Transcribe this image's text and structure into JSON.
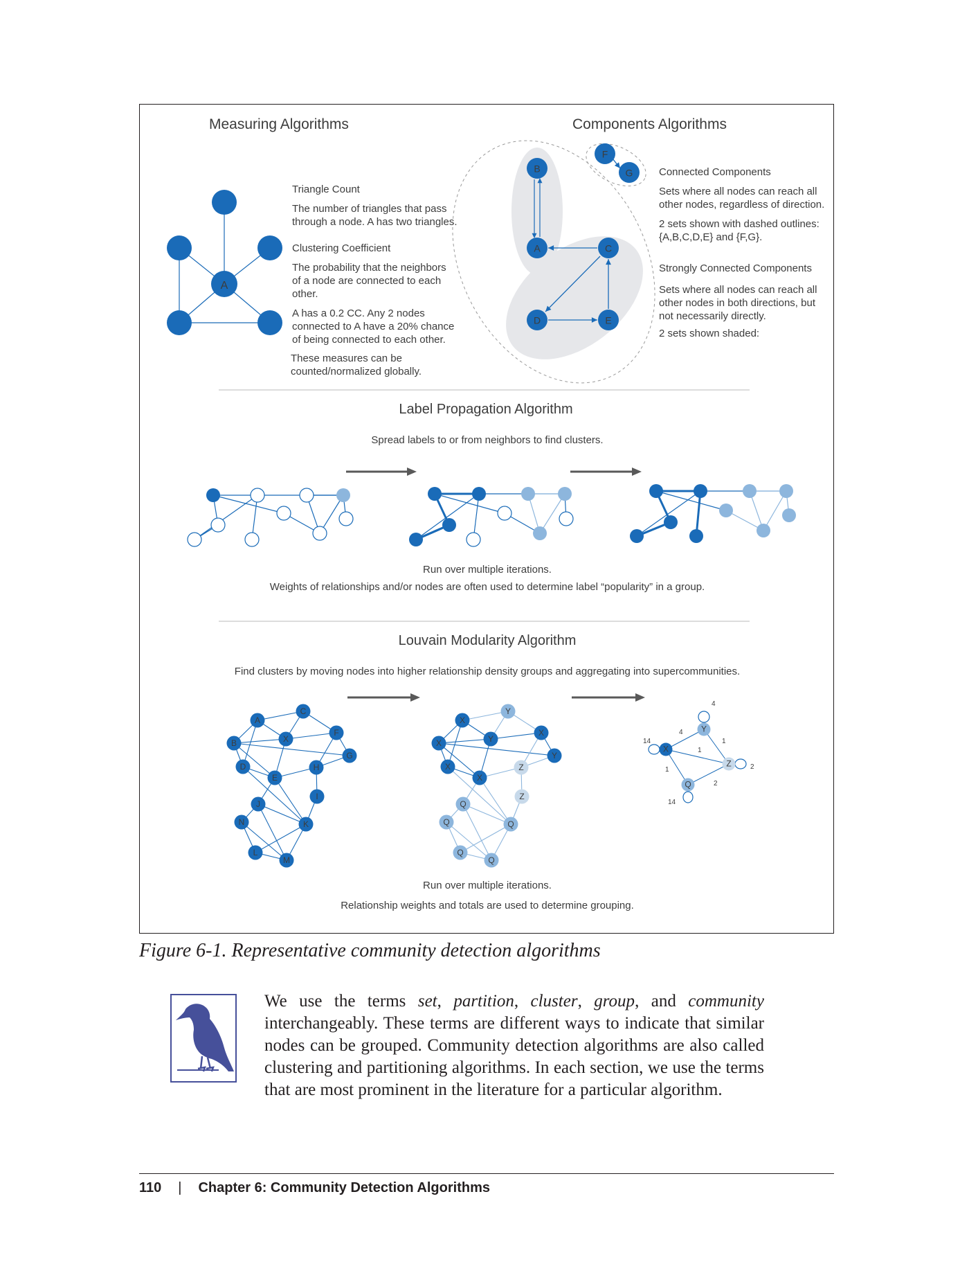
{
  "figure": {
    "measuring": {
      "title": "Measuring Algorithms",
      "node_label": "A",
      "triangle_title": "Triangle Count",
      "triangle_lines": [
        "The number of triangles that pass",
        "through a node. A has two triangles."
      ],
      "clustering_title": "Clustering Coefficient",
      "clustering_lines": [
        "The probability that the neighbors",
        "of a node are connected to each",
        "other."
      ],
      "cc_lines": [
        " A has a 0.2 CC. Any 2 nodes",
        "connected to A have a 20% chance",
        "of being connected to each other."
      ],
      "global_lines": [
        "These measures can be",
        "counted/normalized globally."
      ]
    },
    "components": {
      "title": "Components Algorithms",
      "nodes": [
        "F",
        "G",
        "B",
        "A",
        "C",
        "D",
        "E"
      ],
      "connected_title": "Connected Components",
      "connected_lines": [
        "Sets where all nodes can reach all",
        "other nodes, regardless of direction."
      ],
      "dashed_lines": [
        "2 sets shown with dashed outlines:",
        " {A,B,C,D,E} and {F,G}."
      ],
      "strongly_title": "Strongly Connected Components",
      "strongly_lines": [
        "Sets where all nodes can reach all",
        "other nodes in both directions, but",
        "not necessarily directly."
      ],
      "shaded_line": "2 sets shown shaded:"
    },
    "label_propagation": {
      "title": "Label Propagation Algorithm",
      "subtitle": "Spread labels to or from neighbors to find clusters.",
      "footer_lines": [
        "Run over multiple iterations.",
        "Weights of relationships and/or nodes are often used to determine label “popularity” in a group."
      ]
    },
    "louvain": {
      "title": "Louvain Modularity Algorithm",
      "subtitle": "Find clusters by moving nodes into higher relationship density groups and aggregating into supercommunities.",
      "graph1_nodes": [
        "A",
        "C",
        "X",
        "F",
        "B",
        "G",
        "D",
        "H",
        "E",
        "I",
        "J",
        "N",
        "K",
        "L",
        "M"
      ],
      "graph2_nodes": [
        "X",
        "Y",
        "Y",
        "X",
        "X",
        "Y",
        "X",
        "Z",
        "X",
        "Z",
        "Q",
        "Q",
        "Q",
        "Q",
        "Q"
      ],
      "graph3_nodes": [
        "Y",
        "X",
        "Z",
        "Q"
      ],
      "graph3_weights": [
        "4",
        "4",
        "14",
        "1",
        "1",
        "2",
        "1",
        "2",
        "14"
      ],
      "footer_lines": [
        "Run over multiple iterations.",
        "Relationship weights and totals are used to determine grouping."
      ]
    }
  },
  "caption": "Figure 6-1. Representative community detection algorithms",
  "note": {
    "icon": "crow-icon",
    "parts": [
      {
        "t": "We use the terms ",
        "i": false
      },
      {
        "t": "set",
        "i": true
      },
      {
        "t": ", ",
        "i": false
      },
      {
        "t": "partition",
        "i": true
      },
      {
        "t": ", ",
        "i": false
      },
      {
        "t": "cluster",
        "i": true
      },
      {
        "t": ", ",
        "i": false
      },
      {
        "t": "group",
        "i": true
      },
      {
        "t": ", and ",
        "i": false
      },
      {
        "t": "community",
        "i": true
      },
      {
        "t": " interchangeably. These terms are different ways to indicate that similar nodes can be grouped. Community detection algorithms are also called clustering and partitioning algorithms. In each section, we use the terms that are most prominent in the literature for a particular algorithm.",
        "i": false
      }
    ]
  },
  "footer": {
    "page_number": "110",
    "separator": "|",
    "chapter": "Chapter 6: Community Detection Algorithms"
  },
  "colors": {
    "dark_blue": "#1a6bb8",
    "light_blue": "#8db6dd",
    "pale_blue": "#c7d9ea",
    "shade": "#e6e7ea",
    "arrow_gray": "#595959",
    "note_icon": "#46509a"
  }
}
